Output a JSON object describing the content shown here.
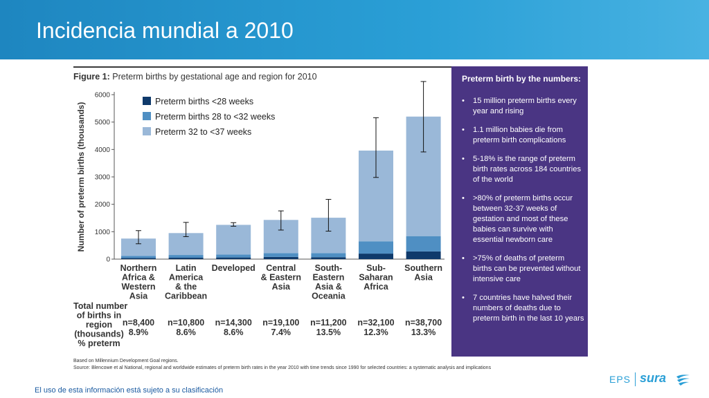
{
  "header": {
    "title": "Incidencia mundial a 2010"
  },
  "figure": {
    "title_bold": "Figure 1:",
    "title_rest": " Preterm births by gestational age and region for 2010",
    "note1": "Based on Millennium Development Goal regions.",
    "note2": "Source: Blencowe et al National, regional and worldwide estimates of preterm birth rates in the year 2010 with time trends since 1990 for selected countries: a systematic analysis and implications"
  },
  "chart_data": {
    "type": "bar",
    "stacked": true,
    "ylabel": "Number of preterm births (thousands)",
    "ylim": [
      0,
      6000
    ],
    "yticks": [
      "0",
      "1000",
      "2000",
      "3000",
      "4000",
      "5000",
      "6000"
    ],
    "categories": [
      [
        "Northern",
        "Africa &",
        "Western",
        "Asia"
      ],
      [
        "Latin",
        "America",
        "& the",
        "Caribbean"
      ],
      [
        "Developed"
      ],
      [
        "Central",
        "& Eastern",
        "Asia"
      ],
      [
        "South-",
        "Eastern",
        "Asia &",
        "Oceania"
      ],
      [
        "Sub-",
        "Saharan",
        "Africa"
      ],
      [
        "Southern",
        "Asia"
      ]
    ],
    "series": [
      {
        "name": "Preterm births <28 weeks",
        "color": "#0f3a6b",
        "values": [
          40,
          50,
          60,
          80,
          70,
          200,
          280
        ]
      },
      {
        "name": "Preterm births 28 to <32 weeks",
        "color": "#4f8fc3",
        "values": [
          80,
          100,
          110,
          140,
          150,
          450,
          560
        ]
      },
      {
        "name": "Preterm 32 to <37 weeks",
        "color": "#9ab8d8",
        "values": [
          630,
          800,
          1080,
          1210,
          1290,
          3310,
          4360
        ]
      }
    ],
    "error_bars": [
      {
        "low": 560,
        "high": 1040
      },
      {
        "low": 820,
        "high": 1340
      },
      {
        "low": 1200,
        "high": 1330
      },
      {
        "low": 1060,
        "high": 1760
      },
      {
        "low": 1020,
        "high": 2180
      },
      {
        "low": 2980,
        "high": 5160
      },
      {
        "low": 3910,
        "high": 6480
      }
    ],
    "totals_label": [
      "Total number",
      "of births in",
      "region",
      "(thousands)",
      "% preterm"
    ],
    "totals": [
      {
        "n": "n=8,400",
        "pct": "8.9%"
      },
      {
        "n": "n=10,800",
        "pct": "8.6%"
      },
      {
        "n": "n=14,300",
        "pct": "8.6%"
      },
      {
        "n": "n=19,100",
        "pct": "7.4%"
      },
      {
        "n": "n=11,200",
        "pct": "13.5%"
      },
      {
        "n": "n=32,100",
        "pct": "12.3%"
      },
      {
        "n": "n=38,700",
        "pct": "13.3%"
      }
    ],
    "legend_position": "top-left",
    "grid": false
  },
  "panel": {
    "title": "Preterm birth by the numbers:",
    "items": [
      "15 million preterm births every year and rising",
      "1.1 million babies die from preterm birth complications",
      "5-18% is the range of preterm birth rates across 184 countries of the world",
      ">80% of preterm births occur between 32-37 weeks of gestation and most of these babies can survive with essential newborn care",
      ">75% of deaths of preterm births can be prevented without intensive care",
      "7 countries have halved their numbers of deaths due to preterm birth in the last 10 years"
    ]
  },
  "footer": {
    "note": "El uso de esta información está sujeto a su clasificación",
    "logo_eps": "EPS",
    "logo_sura": "sura"
  }
}
